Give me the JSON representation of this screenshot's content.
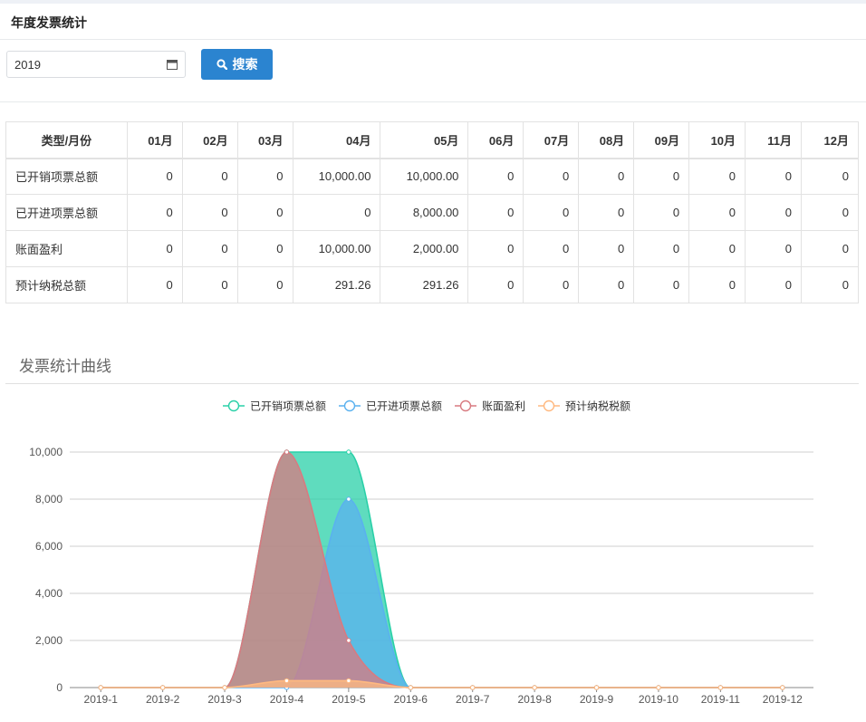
{
  "page": {
    "title": "年度发票统计"
  },
  "filter": {
    "year_value": "2019",
    "calendar_icon": "calendar-icon",
    "search_label": "搜索",
    "search_icon": "search-icon"
  },
  "table": {
    "headers": [
      "类型/月份",
      "01月",
      "02月",
      "03月",
      "04月",
      "05月",
      "06月",
      "07月",
      "08月",
      "09月",
      "10月",
      "11月",
      "12月"
    ],
    "rows": [
      {
        "label": "已开销项票总额",
        "cells": [
          "0",
          "0",
          "0",
          "10,000.00",
          "10,000.00",
          "0",
          "0",
          "0",
          "0",
          "0",
          "0",
          "0"
        ]
      },
      {
        "label": "已开进项票总额",
        "cells": [
          "0",
          "0",
          "0",
          "0",
          "8,000.00",
          "0",
          "0",
          "0",
          "0",
          "0",
          "0",
          "0"
        ]
      },
      {
        "label": "账面盈利",
        "cells": [
          "0",
          "0",
          "0",
          "10,000.00",
          "2,000.00",
          "0",
          "0",
          "0",
          "0",
          "0",
          "0",
          "0"
        ]
      },
      {
        "label": "预计纳税总额",
        "cells": [
          "0",
          "0",
          "0",
          "291.26",
          "291.26",
          "0",
          "0",
          "0",
          "0",
          "0",
          "0",
          "0"
        ]
      }
    ]
  },
  "chart_section": {
    "title": "发票统计曲线"
  },
  "chart_data": {
    "type": "area",
    "categories": [
      "2019-1",
      "2019-2",
      "2019-3",
      "2019-4",
      "2019-5",
      "2019-6",
      "2019-7",
      "2019-8",
      "2019-9",
      "2019-10",
      "2019-11",
      "2019-12"
    ],
    "series": [
      {
        "name": "已开销项票总额",
        "color": "#2ad0a8",
        "values": [
          0,
          0,
          0,
          10000,
          10000,
          0,
          0,
          0,
          0,
          0,
          0,
          0
        ]
      },
      {
        "name": "已开进项票总额",
        "color": "#5ab1ef",
        "values": [
          0,
          0,
          0,
          0,
          8000,
          0,
          0,
          0,
          0,
          0,
          0,
          0
        ]
      },
      {
        "name": "账面盈利",
        "color": "#d87a80",
        "values": [
          0,
          0,
          0,
          10000,
          2000,
          0,
          0,
          0,
          0,
          0,
          0,
          0
        ]
      },
      {
        "name": "预计纳税税额",
        "color": "#ffb980",
        "values": [
          0,
          0,
          0,
          291.26,
          291.26,
          0,
          0,
          0,
          0,
          0,
          0,
          0
        ]
      }
    ],
    "yticks": [
      "0",
      "2,000",
      "4,000",
      "6,000",
      "8,000",
      "10,000"
    ],
    "ylim": [
      0,
      10000
    ],
    "grid": true,
    "legend": "top-center"
  }
}
